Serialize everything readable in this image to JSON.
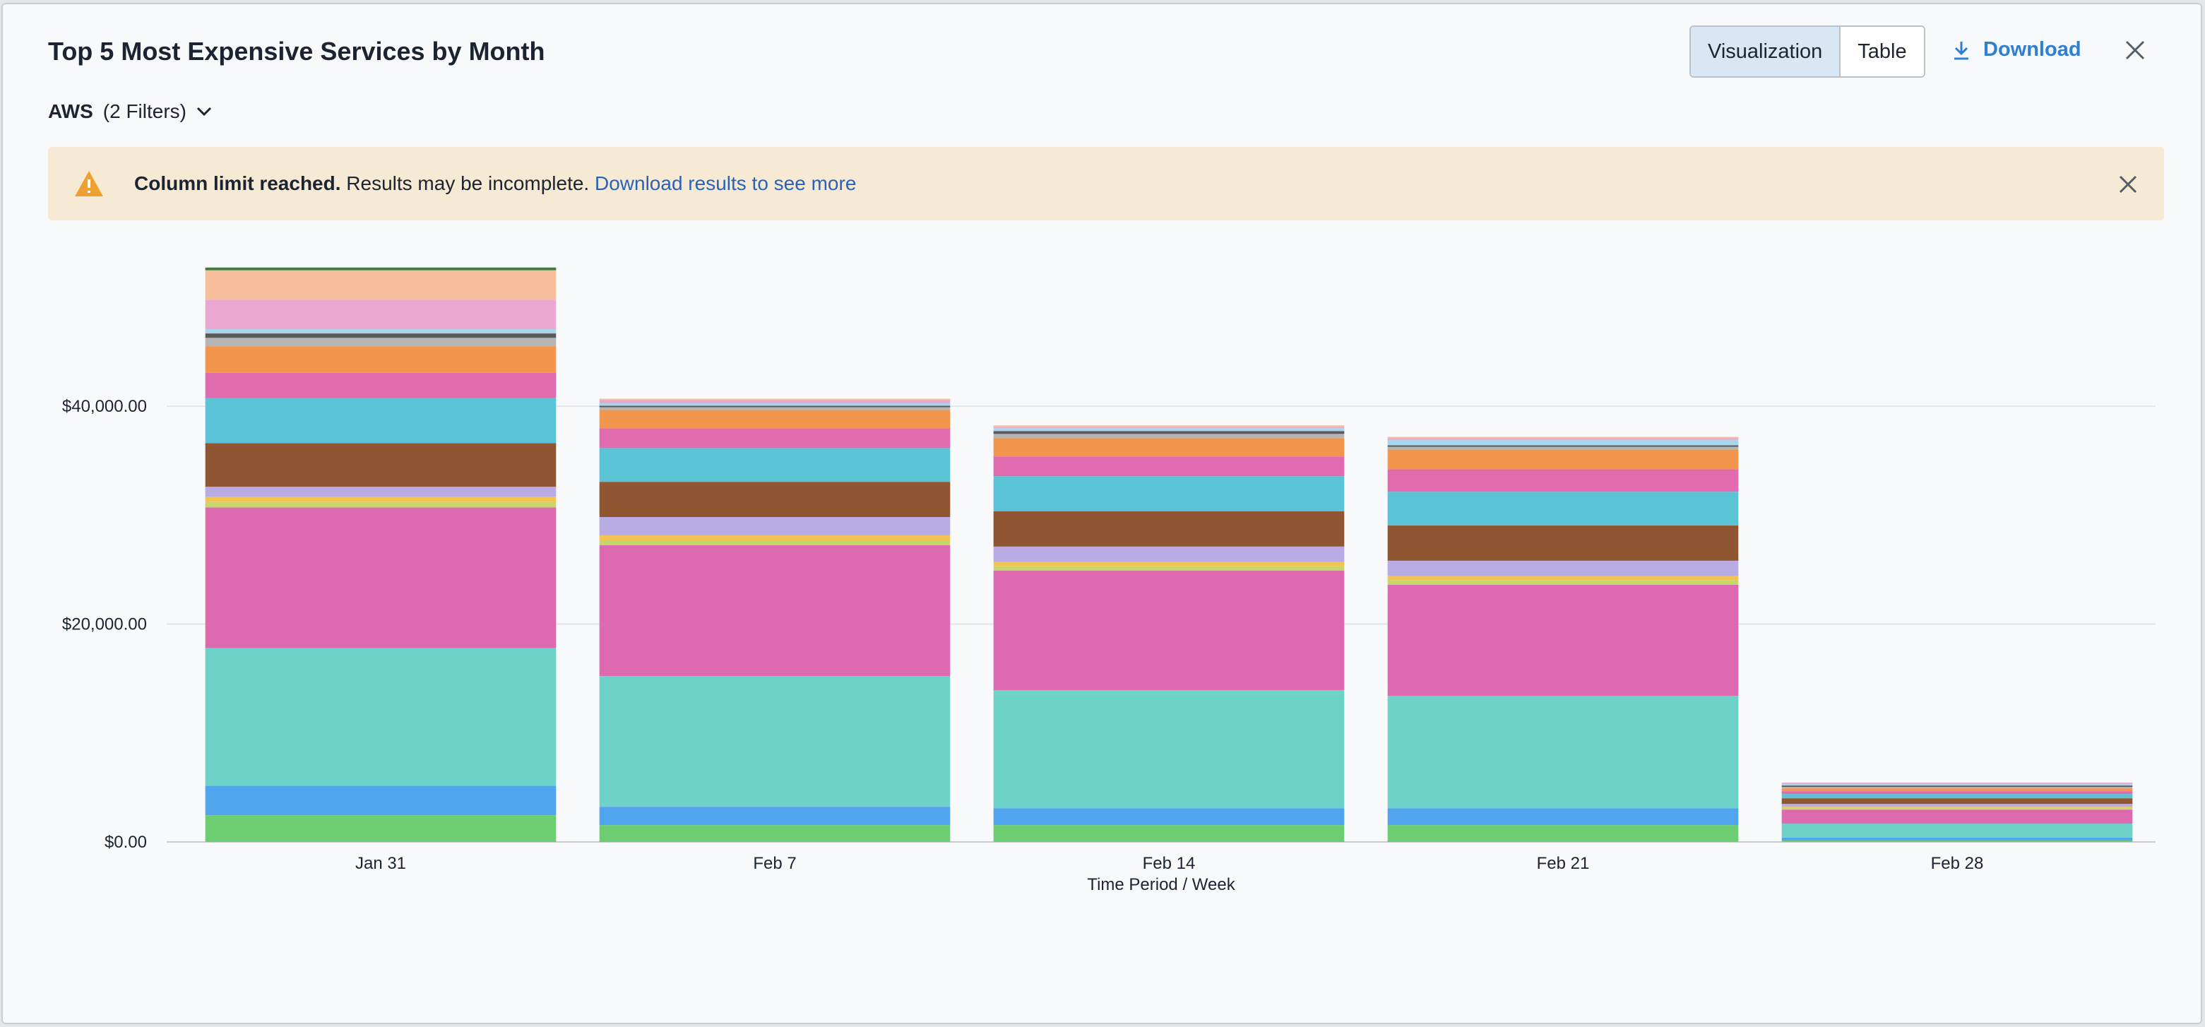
{
  "header": {
    "title": "Top 5 Most Expensive Services by Month",
    "tabs": [
      "Visualization",
      "Table"
    ],
    "download": "Download"
  },
  "filter": {
    "source": "AWS",
    "count": "(2 Filters)"
  },
  "banner": {
    "bold": "Column limit reached.",
    "text": "Results may be incomplete.",
    "link": "Download results to see more"
  },
  "chart_data": {
    "type": "bar",
    "stacked": true,
    "x_label": "Time Period / Week",
    "categories": [
      "Jan 31",
      "Feb 7",
      "Feb 14",
      "Feb 21",
      "Feb 28"
    ],
    "ylim": [
      0,
      54000
    ],
    "yticks": [
      {
        "value": 0,
        "label": "$0.00"
      },
      {
        "value": 20000,
        "label": "$20,000.00"
      },
      {
        "value": 40000,
        "label": "$40,000.00"
      }
    ],
    "grid": true,
    "series": [
      {
        "color": "#6cce71",
        "values": [
          2450,
          1550,
          1550,
          1550,
          130
        ]
      },
      {
        "color": "#50a5ee",
        "values": [
          2700,
          1680,
          1550,
          1550,
          260
        ]
      },
      {
        "color": "#6dd3c9",
        "values": [
          12650,
          12000,
          10840,
          10320,
          1290
        ]
      },
      {
        "color": "#dd6ab1",
        "values": [
          12900,
          12000,
          10970,
          10190,
          1290
        ]
      },
      {
        "color": "#c5d66b",
        "values": [
          500,
          390,
          390,
          390,
          130
        ]
      },
      {
        "color": "#f2c453",
        "values": [
          500,
          520,
          390,
          390,
          130
        ]
      },
      {
        "color": "#b9abe4",
        "values": [
          900,
          1680,
          1420,
          1420,
          260
        ]
      },
      {
        "color": "#8f5631",
        "values": [
          4000,
          3230,
          3230,
          3230,
          520
        ]
      },
      {
        "color": "#5ac3d5",
        "values": [
          4130,
          3100,
          3230,
          3100,
          390
        ]
      },
      {
        "color": "#e06baf",
        "values": [
          2320,
          1810,
          1810,
          2060,
          260
        ]
      },
      {
        "color": "#f2964d",
        "values": [
          2450,
          1680,
          1680,
          1810,
          260
        ]
      },
      {
        "color": "#b5b5b5",
        "values": [
          770,
          260,
          390,
          260,
          130
        ]
      },
      {
        "color": "#5a5a5a",
        "values": [
          400,
          130,
          260,
          130,
          130
        ]
      },
      {
        "color": "#a8d5ea",
        "values": [
          400,
          260,
          260,
          520,
          130
        ]
      },
      {
        "color": "#e9a7d2",
        "values": [
          2700,
          260,
          130,
          130,
          130
        ]
      },
      {
        "color": "#f6bf9a",
        "values": [
          2700,
          130,
          130,
          130,
          0
        ]
      },
      {
        "color": "#3c7d3c",
        "values": [
          250,
          0,
          0,
          0,
          0
        ]
      }
    ]
  }
}
